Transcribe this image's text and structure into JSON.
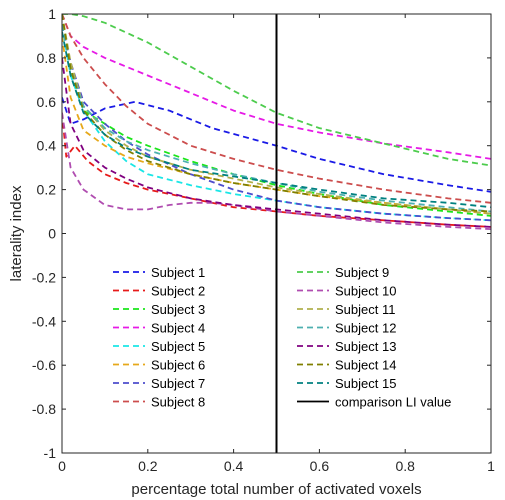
{
  "chart_data": {
    "type": "line",
    "xlabel": "percentage total number of activated voxels",
    "ylabel": "laterality index",
    "xlim": [
      0,
      1
    ],
    "ylim": [
      -1,
      1
    ],
    "xticks": [
      "0",
      "0.2",
      "0.4",
      "0.6",
      "0.8",
      "1"
    ],
    "yticks": [
      "1",
      "0.8",
      "0.6",
      "0.4",
      "0.2",
      "0",
      "-0.2",
      "-0.4",
      "-0.6",
      "-0.8",
      "-1"
    ],
    "grid": false,
    "legend_position": "lower-center",
    "reference_line": {
      "label": "comparison LI value",
      "x": 0.5,
      "color": "#000000"
    },
    "series": [
      {
        "name": "Subject 1",
        "color": "#1a1ae6",
        "x": [
          0,
          0.02,
          0.05,
          0.1,
          0.17,
          0.25,
          0.35,
          0.5,
          0.6,
          0.75,
          0.9,
          1
        ],
        "y": [
          0.62,
          0.5,
          0.52,
          0.57,
          0.6,
          0.56,
          0.48,
          0.4,
          0.34,
          0.27,
          0.22,
          0.19
        ]
      },
      {
        "name": "Subject 2",
        "color": "#e61a1a",
        "x": [
          0,
          0.01,
          0.03,
          0.06,
          0.1,
          0.15,
          0.2,
          0.3,
          0.4,
          0.5,
          0.6,
          0.75,
          0.9,
          1
        ],
        "y": [
          0.55,
          0.35,
          0.4,
          0.33,
          0.27,
          0.23,
          0.2,
          0.16,
          0.12,
          0.1,
          0.08,
          0.06,
          0.04,
          0.03
        ]
      },
      {
        "name": "Subject 3",
        "color": "#1ae61a",
        "x": [
          0,
          0.02,
          0.05,
          0.1,
          0.15,
          0.2,
          0.3,
          0.4,
          0.5,
          0.6,
          0.75,
          0.9,
          1
        ],
        "y": [
          1.0,
          0.75,
          0.56,
          0.5,
          0.44,
          0.4,
          0.33,
          0.27,
          0.22,
          0.18,
          0.13,
          0.1,
          0.08
        ]
      },
      {
        "name": "Subject 4",
        "color": "#e61ae6",
        "x": [
          0,
          0.02,
          0.05,
          0.1,
          0.2,
          0.3,
          0.4,
          0.5,
          0.6,
          0.75,
          0.9,
          1
        ],
        "y": [
          1.0,
          0.9,
          0.85,
          0.8,
          0.72,
          0.64,
          0.56,
          0.5,
          0.46,
          0.41,
          0.37,
          0.34
        ]
      },
      {
        "name": "Subject 5",
        "color": "#1ae6e6",
        "x": [
          0,
          0.02,
          0.05,
          0.1,
          0.15,
          0.2,
          0.3,
          0.4,
          0.5,
          0.6,
          0.75,
          0.9,
          1
        ],
        "y": [
          0.95,
          0.72,
          0.56,
          0.42,
          0.33,
          0.27,
          0.22,
          0.18,
          0.15,
          0.12,
          0.09,
          0.07,
          0.06
        ]
      },
      {
        "name": "Subject 6",
        "color": "#e6a81a",
        "x": [
          0,
          0.02,
          0.05,
          0.1,
          0.15,
          0.2,
          0.3,
          0.4,
          0.5,
          0.6,
          0.75,
          0.9,
          1
        ],
        "y": [
          0.9,
          0.62,
          0.47,
          0.4,
          0.35,
          0.32,
          0.27,
          0.23,
          0.2,
          0.17,
          0.14,
          0.11,
          0.09
        ]
      },
      {
        "name": "Subject 7",
        "color": "#4d4dcc",
        "x": [
          0,
          0.02,
          0.05,
          0.1,
          0.15,
          0.2,
          0.3,
          0.4,
          0.5,
          0.6,
          0.75,
          0.9,
          1
        ],
        "y": [
          0.95,
          0.78,
          0.6,
          0.5,
          0.42,
          0.36,
          0.27,
          0.2,
          0.15,
          0.12,
          0.09,
          0.07,
          0.06
        ]
      },
      {
        "name": "Subject 8",
        "color": "#cc4d4d",
        "x": [
          0,
          0.02,
          0.05,
          0.1,
          0.15,
          0.2,
          0.3,
          0.4,
          0.5,
          0.6,
          0.75,
          0.9,
          1
        ],
        "y": [
          1.0,
          0.9,
          0.8,
          0.68,
          0.58,
          0.5,
          0.4,
          0.34,
          0.29,
          0.25,
          0.2,
          0.16,
          0.14
        ]
      },
      {
        "name": "Subject 9",
        "color": "#4dcc4d",
        "x": [
          0,
          0.02,
          0.05,
          0.1,
          0.2,
          0.3,
          0.4,
          0.5,
          0.6,
          0.75,
          0.9,
          1
        ],
        "y": [
          1.0,
          1.0,
          0.99,
          0.96,
          0.87,
          0.76,
          0.65,
          0.55,
          0.48,
          0.41,
          0.34,
          0.31
        ]
      },
      {
        "name": "Subject 10",
        "color": "#b04db0",
        "x": [
          0,
          0.02,
          0.05,
          0.1,
          0.15,
          0.2,
          0.25,
          0.3,
          0.35,
          0.4,
          0.5,
          0.6,
          0.75,
          0.9,
          1
        ],
        "y": [
          0.55,
          0.3,
          0.2,
          0.13,
          0.11,
          0.11,
          0.13,
          0.14,
          0.14,
          0.13,
          0.1,
          0.08,
          0.05,
          0.03,
          0.02
        ]
      },
      {
        "name": "Subject 11",
        "color": "#b0b04d",
        "x": [
          0,
          0.02,
          0.05,
          0.1,
          0.15,
          0.2,
          0.3,
          0.4,
          0.5,
          0.6,
          0.75,
          0.9,
          1
        ],
        "y": [
          1.0,
          0.78,
          0.58,
          0.47,
          0.4,
          0.35,
          0.29,
          0.25,
          0.21,
          0.18,
          0.14,
          0.11,
          0.09
        ]
      },
      {
        "name": "Subject 12",
        "color": "#4db0b0",
        "x": [
          0,
          0.02,
          0.05,
          0.1,
          0.15,
          0.2,
          0.3,
          0.4,
          0.5,
          0.6,
          0.75,
          0.9,
          1
        ],
        "y": [
          0.95,
          0.75,
          0.58,
          0.48,
          0.42,
          0.38,
          0.32,
          0.27,
          0.23,
          0.19,
          0.15,
          0.12,
          0.1
        ]
      },
      {
        "name": "Subject 13",
        "color": "#800080",
        "x": [
          0,
          0.02,
          0.05,
          0.1,
          0.15,
          0.2,
          0.3,
          0.4,
          0.5,
          0.6,
          0.75,
          0.9,
          1
        ],
        "y": [
          0.8,
          0.5,
          0.38,
          0.3,
          0.25,
          0.21,
          0.16,
          0.13,
          0.11,
          0.09,
          0.06,
          0.04,
          0.03
        ]
      },
      {
        "name": "Subject 14",
        "color": "#808000",
        "x": [
          0,
          0.02,
          0.05,
          0.1,
          0.15,
          0.2,
          0.3,
          0.4,
          0.5,
          0.6,
          0.75,
          0.9,
          1
        ],
        "y": [
          1.0,
          0.75,
          0.56,
          0.45,
          0.38,
          0.33,
          0.27,
          0.23,
          0.2,
          0.17,
          0.13,
          0.11,
          0.1
        ]
      },
      {
        "name": "Subject 15",
        "color": "#008080",
        "x": [
          0,
          0.02,
          0.05,
          0.1,
          0.15,
          0.2,
          0.3,
          0.4,
          0.5,
          0.6,
          0.75,
          0.9,
          1
        ],
        "y": [
          0.92,
          0.72,
          0.55,
          0.45,
          0.39,
          0.35,
          0.29,
          0.26,
          0.23,
          0.2,
          0.16,
          0.14,
          0.12
        ]
      }
    ]
  }
}
